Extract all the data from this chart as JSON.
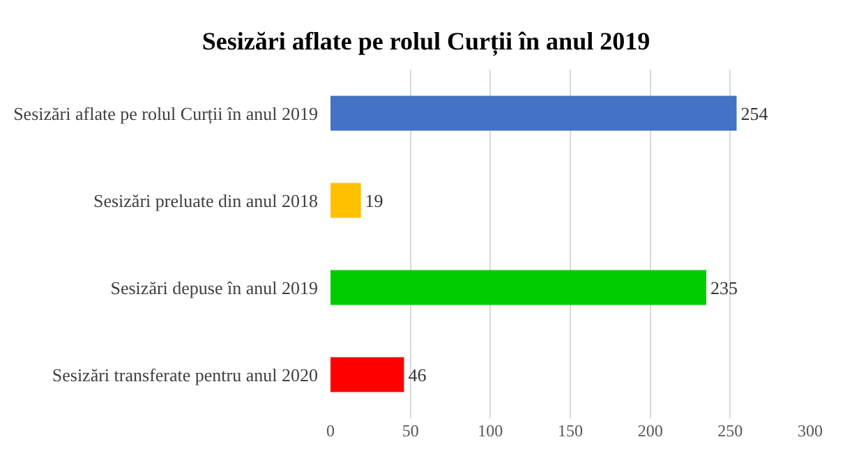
{
  "chart_data": {
    "type": "bar",
    "orientation": "horizontal",
    "title": "Sesizări aflate pe rolul Curții în anul 2019",
    "categories": [
      "Sesizări aflate pe rolul Curții în anul 2019",
      "Sesizări preluate din anul 2018",
      "Sesizări depuse în anul 2019",
      "Sesizări transferate pentru anul 2020"
    ],
    "values": [
      254,
      19,
      235,
      46
    ],
    "colors": [
      "#4472c4",
      "#ffc000",
      "#00cc00",
      "#ff0000"
    ],
    "xlim": [
      0,
      300
    ],
    "xticks": [
      0,
      50,
      100,
      150,
      200,
      250,
      300
    ],
    "grid": "x",
    "data_labels": true,
    "legend": false
  }
}
